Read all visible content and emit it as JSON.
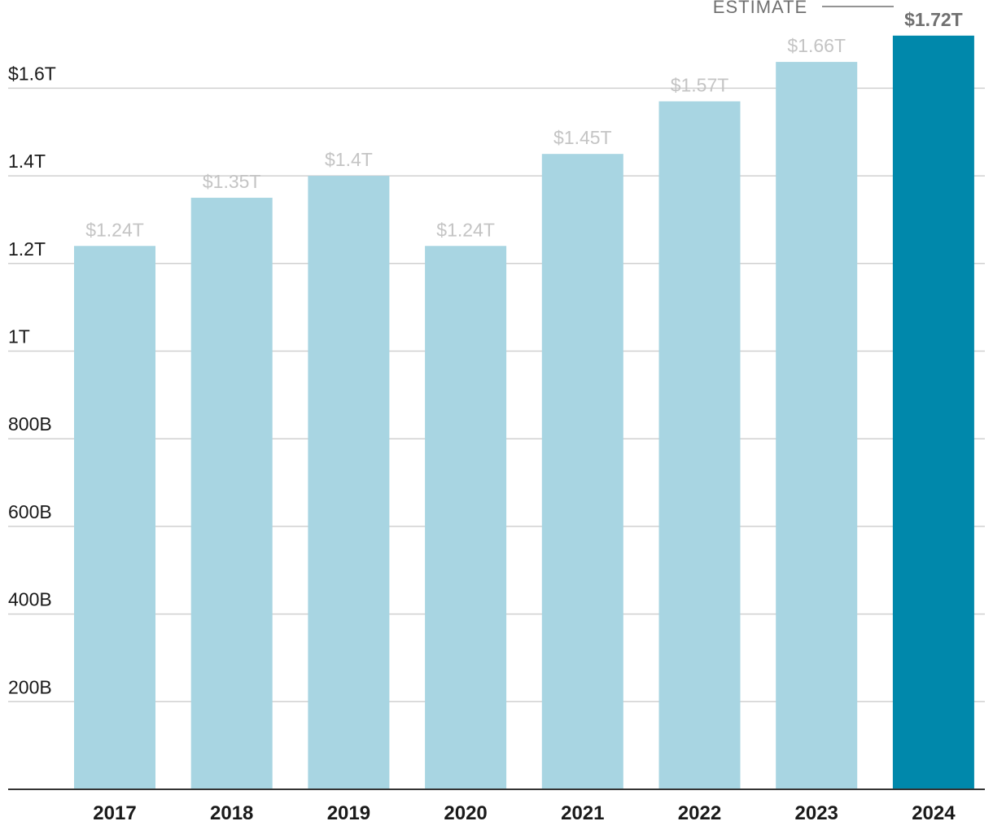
{
  "chart_data": {
    "type": "bar",
    "title": "",
    "xlabel": "",
    "ylabel": "",
    "categories": [
      "2017",
      "2018",
      "2019",
      "2020",
      "2021",
      "2022",
      "2023",
      "2024"
    ],
    "values": [
      1.24,
      1.35,
      1.4,
      1.24,
      1.45,
      1.57,
      1.66,
      1.72
    ],
    "value_unit": "trillions of dollars",
    "data_labels": [
      "$1.24T",
      "$1.35T",
      "$1.4T",
      "$1.24T",
      "$1.45T",
      "$1.57T",
      "$1.66T",
      "$1.72T"
    ],
    "ylim": [
      0,
      1.72
    ],
    "yticks": [
      {
        "value": 0.2,
        "label": "200B"
      },
      {
        "value": 0.4,
        "label": "400B"
      },
      {
        "value": 0.6,
        "label": "600B"
      },
      {
        "value": 0.8,
        "label": "800B"
      },
      {
        "value": 1.0,
        "label": "1T"
      },
      {
        "value": 1.2,
        "label": "1.2T"
      },
      {
        "value": 1.4,
        "label": "1.4T"
      },
      {
        "value": 1.6,
        "label": "$1.6T"
      }
    ],
    "grid": true,
    "highlight_index": 7,
    "annotation": "ESTIMATE",
    "colors": {
      "bar": "#a8d5e2",
      "highlight": "#0088ab",
      "grid": "#d0d0d0",
      "axis": "#333333",
      "label": "#c4c4c4",
      "highlight_label": "#707070"
    }
  }
}
